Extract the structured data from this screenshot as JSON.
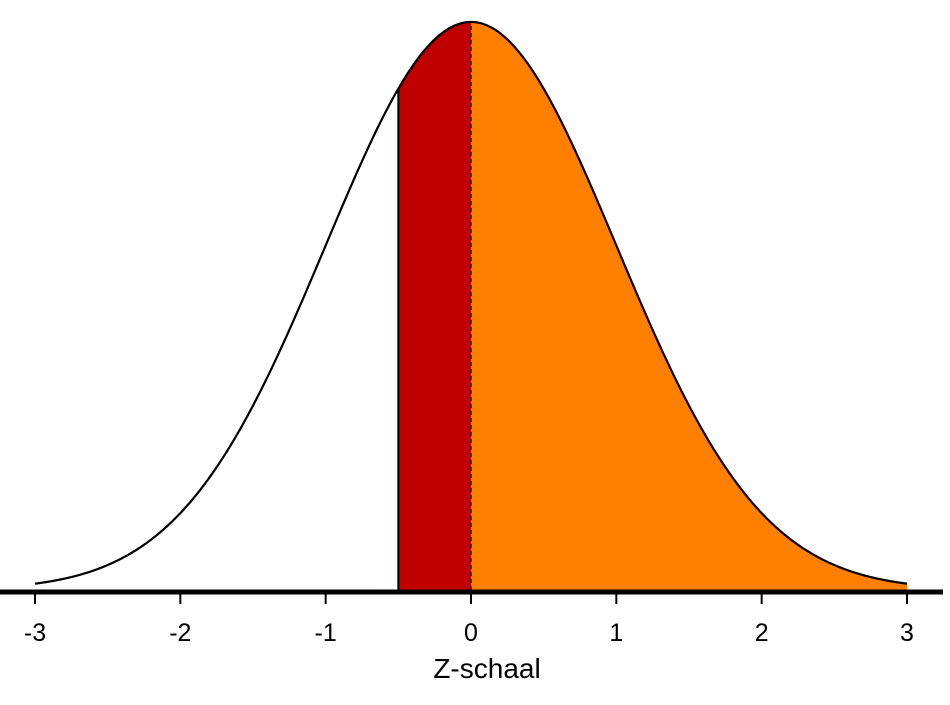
{
  "chart_data": {
    "type": "area",
    "title": "",
    "xlabel": "Z-schaal",
    "ylabel": "",
    "xlim": [
      -3,
      3
    ],
    "ylim": [
      0,
      0.3989
    ],
    "distribution": "standard normal",
    "x_ticks": [
      -3,
      -2,
      -1,
      0,
      1,
      2,
      3
    ],
    "x_tick_labels": [
      "-3",
      "-2",
      "-1",
      "0",
      "1",
      "2",
      "3"
    ],
    "shaded_regions": [
      {
        "name": "region-neg-half-to-zero",
        "from": -0.5,
        "to": 0,
        "color": "#C00000"
      },
      {
        "name": "region-zero-to-three",
        "from": 0,
        "to": 3,
        "color": "#FF8000"
      }
    ],
    "reference_lines": [
      {
        "x": -0.5,
        "style": "solid"
      },
      {
        "x": 0,
        "style": "dashed"
      }
    ],
    "curve_color": "#000000",
    "axis_color": "#000000",
    "grid": false
  }
}
